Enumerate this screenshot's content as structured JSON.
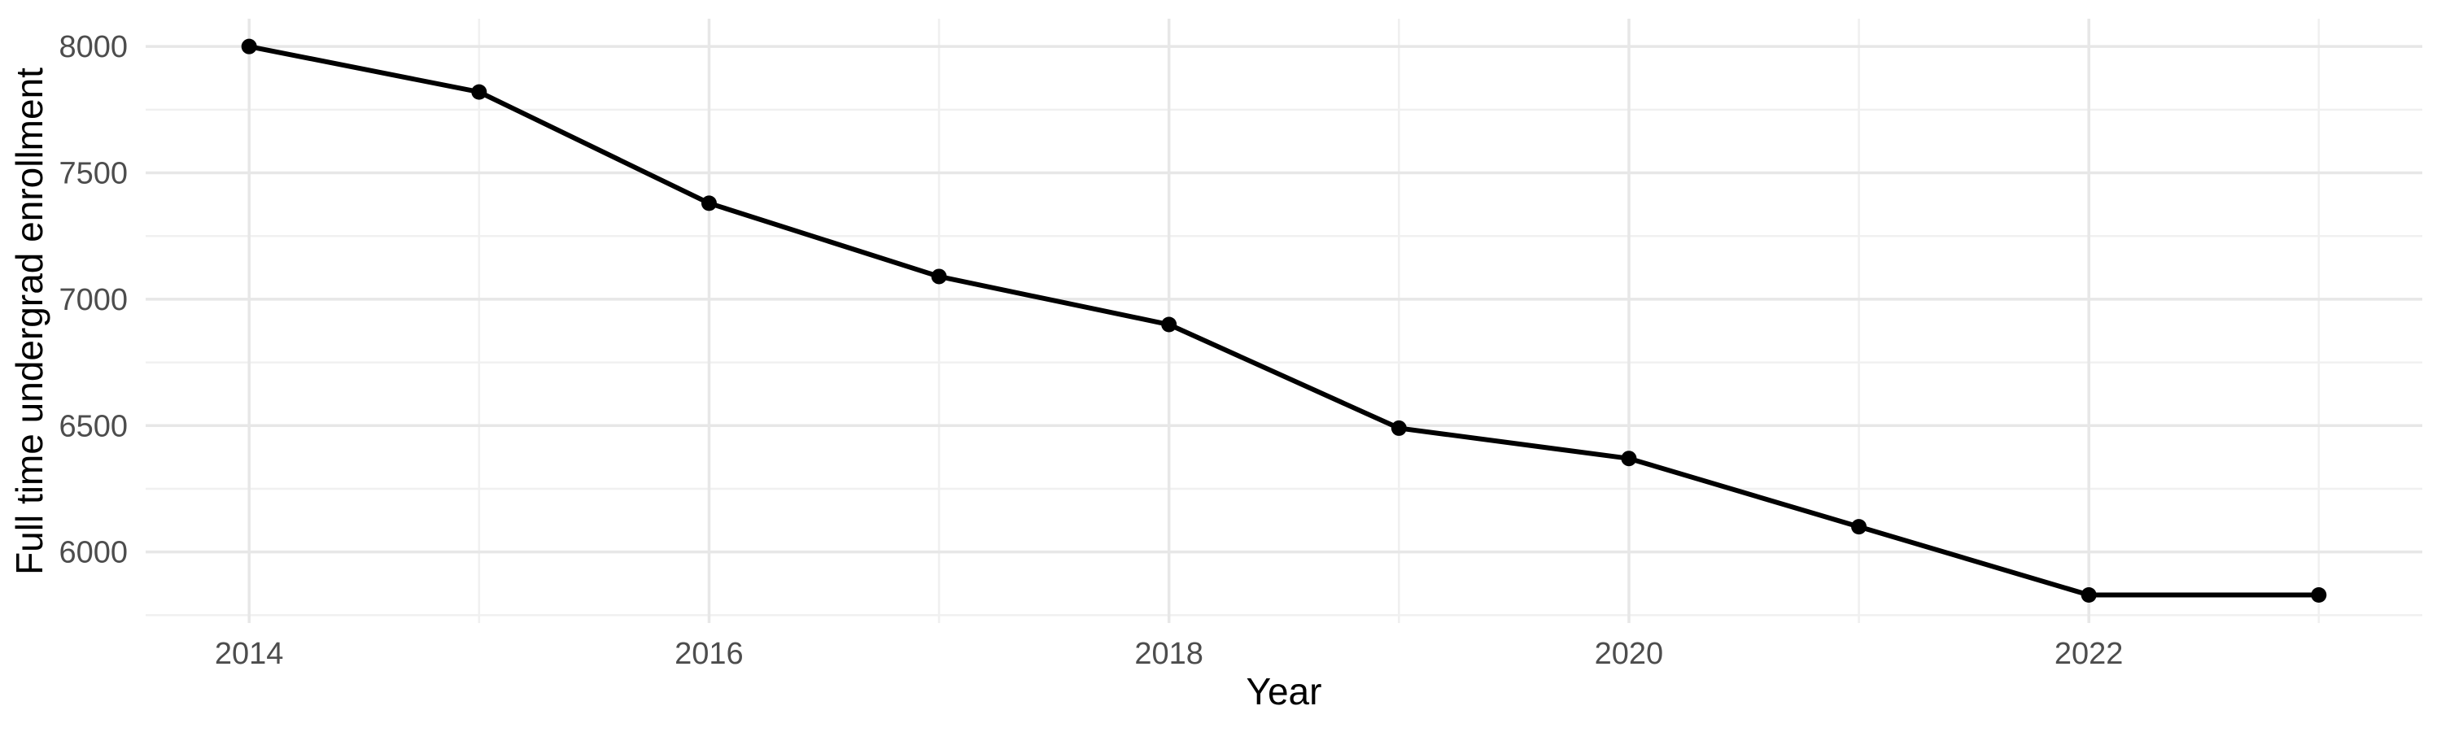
{
  "chart_data": {
    "type": "line",
    "title": "",
    "xlabel": "Year",
    "ylabel": "Full time undergrad enrollment",
    "series": [
      {
        "name": "Full time undergrad enrollment",
        "x": [
          2014,
          2015,
          2016,
          2017,
          2018,
          2019,
          2020,
          2021,
          2022,
          2023
        ],
        "values": [
          8000,
          7820,
          7380,
          7090,
          6900,
          6490,
          6370,
          6100,
          5830,
          5830
        ]
      }
    ],
    "x_ticks": [
      2014,
      2016,
      2018,
      2020,
      2022
    ],
    "x_tick_labels": [
      "2014",
      "2016",
      "2018",
      "2020",
      "2022"
    ],
    "x_minor_ticks": [
      2015,
      2017,
      2019,
      2021,
      2023
    ],
    "y_ticks": [
      8000,
      7500,
      7000,
      6500,
      6000
    ],
    "y_tick_labels": [
      "8000",
      "7500",
      "7000",
      "6500",
      "6000"
    ],
    "y_minor_ticks": [
      7750,
      7250,
      6750,
      6250,
      5750
    ],
    "xlim": [
      2013.55,
      2023.45
    ],
    "ylim": [
      5719,
      8110
    ],
    "grid": true,
    "legend": false,
    "colors": {
      "background": "#ffffff",
      "line": "#000000",
      "point": "#000000",
      "grid_major": "#e7e7e7",
      "grid_minor": "#f0f0f0",
      "tick_label": "#4d4d4d",
      "axis_title": "#000000"
    }
  }
}
